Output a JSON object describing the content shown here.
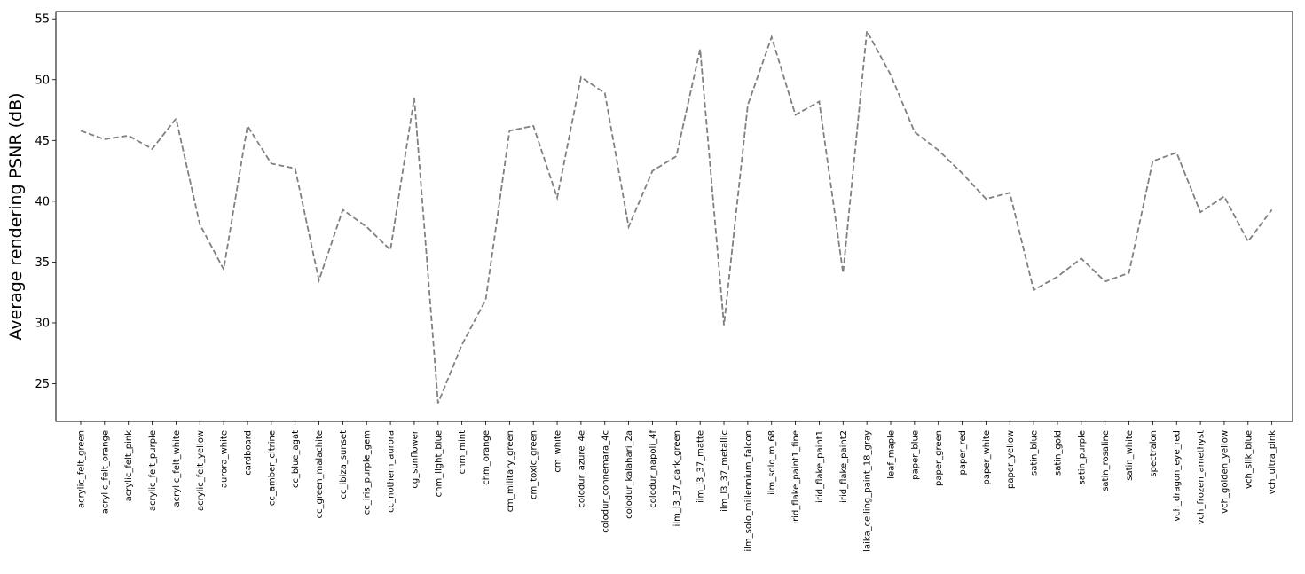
{
  "chart_data": {
    "type": "line",
    "title": "",
    "xlabel": "",
    "ylabel": "Average rendering PSNR (dB)",
    "ylim": [
      21.9,
      55.6
    ],
    "yticks": [
      25,
      30,
      35,
      40,
      45,
      50,
      55
    ],
    "grid": false,
    "legend": "none",
    "line_color": "#808080",
    "line_style": "dashed",
    "categories": [
      "acrylic_felt_green",
      "acrylic_felt_orange",
      "acrylic_felt_pink",
      "acrylic_felt_purple",
      "acrylic_felt_white",
      "acrylic_felt_yellow",
      "aurora_white",
      "cardboard",
      "cc_amber_citrine",
      "cc_blue_agat",
      "cc_green_malachite",
      "cc_ibiza_sunset",
      "cc_iris_purple_gem",
      "cc_nothern_aurora",
      "cg_sunflower",
      "chm_light_blue",
      "chm_mint",
      "chm_orange",
      "cm_military_green",
      "cm_toxic_green",
      "cm_white",
      "colodur_azure_4e",
      "colodur_connemara_4c",
      "colodur_kalahari_2a",
      "colodur_napoli_4f",
      "ilm_l3_37_dark_green",
      "ilm_l3_37_matte",
      "ilm_l3_37_metallic",
      "ilm_solo_millennium_falcon",
      "ilm_solo_m_68",
      "irid_flake_paint1_fine",
      "irid_flake_paint1",
      "irid_flake_paint2",
      "laika_ceiling_paint_18_gray",
      "leaf_maple",
      "paper_blue",
      "paper_green",
      "paper_red",
      "paper_white",
      "paper_yellow",
      "satin_blue",
      "satin_gold",
      "satin_purple",
      "satin_rosaline",
      "satin_white",
      "spectralon",
      "vch_dragon_eye_red",
      "vch_frozen_amethyst",
      "vch_golden_yellow",
      "vch_silk_blue",
      "vch_ultra_pink"
    ],
    "values": [
      45.8,
      45.1,
      45.4,
      44.3,
      46.8,
      38.1,
      34.4,
      46.2,
      43.1,
      42.7,
      33.5,
      39.3,
      37.9,
      36.0,
      48.5,
      23.4,
      28.2,
      31.9,
      45.8,
      46.2,
      40.3,
      50.2,
      48.9,
      37.9,
      42.5,
      43.7,
      52.5,
      29.8,
      47.9,
      53.5,
      47.1,
      48.2,
      34.1,
      54.0,
      50.4,
      45.7,
      44.2,
      42.3,
      40.2,
      40.7,
      32.7,
      33.8,
      35.3,
      33.4,
      34.1,
      43.3,
      44.0,
      39.1,
      40.4,
      36.7,
      39.3
    ]
  }
}
